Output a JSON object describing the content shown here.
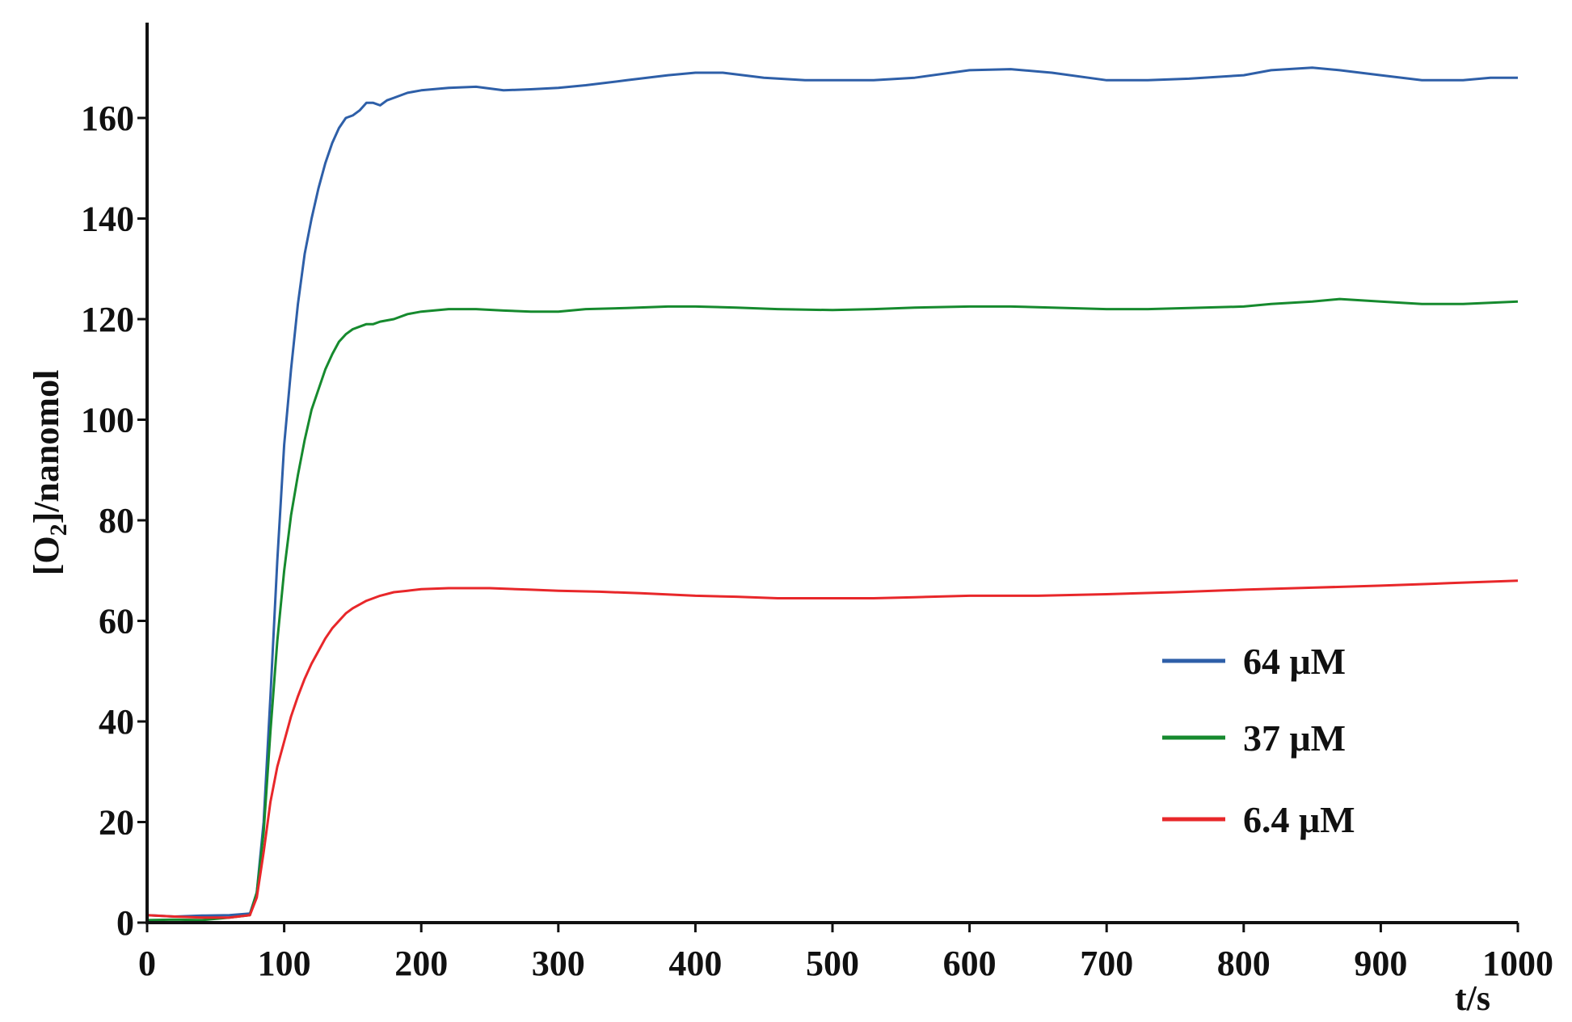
{
  "chart_data": {
    "type": "line",
    "xlabel": "t/s",
    "ylabel_main": "[O",
    "ylabel_sub": "2",
    "ylabel_rest": "]/nanomol",
    "xlim": [
      0,
      1000
    ],
    "ylim": [
      0,
      180
    ],
    "x_ticks": [
      0,
      100,
      200,
      300,
      400,
      500,
      600,
      700,
      800,
      900,
      1000
    ],
    "y_ticks": [
      0,
      20,
      40,
      60,
      80,
      100,
      120,
      140,
      160
    ],
    "grid": false,
    "legend_position": "bottom-right",
    "series": [
      {
        "name": "64 μM",
        "color": "#2e5fa8",
        "x": [
          0,
          20,
          40,
          60,
          75,
          80,
          85,
          90,
          95,
          100,
          105,
          110,
          115,
          120,
          125,
          130,
          135,
          140,
          145,
          150,
          155,
          160,
          165,
          170,
          175,
          180,
          190,
          200,
          220,
          240,
          260,
          280,
          300,
          320,
          350,
          380,
          400,
          420,
          450,
          480,
          500,
          530,
          560,
          600,
          630,
          660,
          700,
          730,
          760,
          800,
          820,
          850,
          870,
          900,
          930,
          960,
          980,
          1000
        ],
        "y": [
          1.5,
          1.2,
          1.4,
          1.5,
          1.8,
          6,
          20,
          45,
          72,
          95,
          110,
          123,
          133,
          140,
          146,
          151,
          155,
          158,
          160,
          160.5,
          161.5,
          163,
          163,
          162.5,
          163.5,
          164,
          165,
          165.5,
          166,
          166.2,
          165.5,
          165.7,
          166,
          166.5,
          167.5,
          168.5,
          169,
          169,
          168,
          167.5,
          167.5,
          167.5,
          168,
          169.5,
          169.7,
          169,
          167.5,
          167.5,
          167.8,
          168.5,
          169.5,
          170,
          169.5,
          168.5,
          167.5,
          167.5,
          168,
          168
        ]
      },
      {
        "name": "37 μM",
        "color": "#168a2e",
        "x": [
          0,
          20,
          40,
          60,
          75,
          80,
          85,
          90,
          95,
          100,
          105,
          110,
          115,
          120,
          125,
          130,
          135,
          140,
          145,
          150,
          155,
          160,
          165,
          170,
          180,
          190,
          200,
          220,
          240,
          260,
          280,
          300,
          320,
          350,
          380,
          400,
          430,
          460,
          500,
          530,
          560,
          600,
          630,
          660,
          700,
          730,
          760,
          800,
          820,
          850,
          870,
          900,
          930,
          960,
          1000
        ],
        "y": [
          0.5,
          0.6,
          0.5,
          1.0,
          1.5,
          6,
          18,
          38,
          56,
          70,
          81,
          89,
          96,
          102,
          106,
          110,
          113,
          115.5,
          117,
          118,
          118.5,
          119,
          119,
          119.5,
          120,
          121,
          121.5,
          122,
          122,
          121.7,
          121.5,
          121.5,
          122,
          122.2,
          122.5,
          122.5,
          122.3,
          122,
          121.8,
          122,
          122.3,
          122.5,
          122.5,
          122.3,
          122,
          122,
          122.2,
          122.5,
          123,
          123.5,
          124,
          123.5,
          123,
          123,
          123.5
        ]
      },
      {
        "name": "6.4 μM",
        "color": "#e8272a",
        "x": [
          0,
          20,
          40,
          60,
          75,
          80,
          85,
          90,
          95,
          100,
          105,
          110,
          115,
          120,
          125,
          130,
          135,
          140,
          145,
          150,
          160,
          170,
          180,
          190,
          200,
          220,
          250,
          280,
          300,
          330,
          360,
          400,
          430,
          460,
          500,
          530,
          560,
          600,
          650,
          700,
          750,
          800,
          850,
          900,
          950,
          1000
        ],
        "y": [
          1.5,
          1.2,
          1.0,
          1.0,
          1.5,
          5,
          14,
          24,
          31,
          36,
          41,
          45,
          48.5,
          51.5,
          54,
          56.5,
          58.5,
          60,
          61.5,
          62.5,
          64,
          65,
          65.7,
          66,
          66.3,
          66.5,
          66.5,
          66.2,
          66,
          65.8,
          65.5,
          65,
          64.8,
          64.5,
          64.5,
          64.5,
          64.7,
          65,
          65,
          65.3,
          65.7,
          66.2,
          66.6,
          67,
          67.5,
          68
        ]
      }
    ]
  }
}
